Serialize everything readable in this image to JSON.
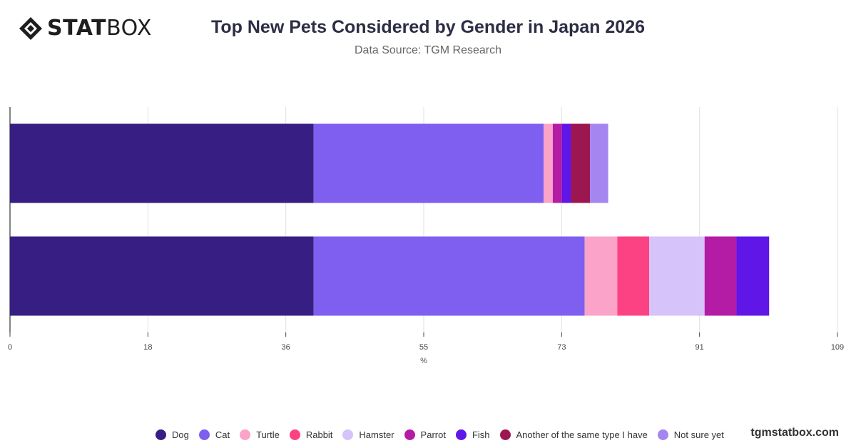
{
  "brand": {
    "logo_bold": "STAT",
    "logo_light": "BOX",
    "watermark": "tgmstatbox.com"
  },
  "header": {
    "title": "Top New Pets Considered by Gender in Japan 2026",
    "subtitle": "Data Source: TGM Research"
  },
  "colors": {
    "Dog": "#371e83",
    "Cat": "#7e5ff0",
    "Turtle": "#fba3c8",
    "Rabbit": "#fd4283",
    "Hamster": "#d5c3fa",
    "Parrot": "#b41ca6",
    "Fish": "#5f16e6",
    "Another of the same type I have": "#9c174f",
    "Not sure yet": "#a586f0"
  },
  "chart_data": {
    "type": "bar",
    "orientation": "horizontal",
    "stacked": true,
    "categories": [
      "",
      ""
    ],
    "title": "Top New Pets Considered by Gender in Japan 2026",
    "xlabel": "%",
    "ylabel": "",
    "xlim": [
      0,
      109
    ],
    "xticks": [
      "0",
      "18",
      "36",
      "55",
      "73",
      "91",
      "109"
    ],
    "grid": true,
    "legend_position": "bottom",
    "series": [
      {
        "name": "Dog",
        "values": [
          40,
          40
        ]
      },
      {
        "name": "Cat",
        "values": [
          30.3,
          35.7
        ]
      },
      {
        "name": "Turtle",
        "values": [
          1.2,
          4.3
        ]
      },
      {
        "name": "Rabbit",
        "values": [
          0,
          4.2
        ]
      },
      {
        "name": "Hamster",
        "values": [
          0,
          7.3
        ]
      },
      {
        "name": "Parrot",
        "values": [
          1.2,
          4.2
        ]
      },
      {
        "name": "Fish",
        "values": [
          1.2,
          4.3
        ]
      },
      {
        "name": "Another of the same type I have",
        "values": [
          2.5,
          0
        ]
      },
      {
        "name": "Not sure yet",
        "values": [
          2.4,
          0
        ]
      }
    ]
  }
}
